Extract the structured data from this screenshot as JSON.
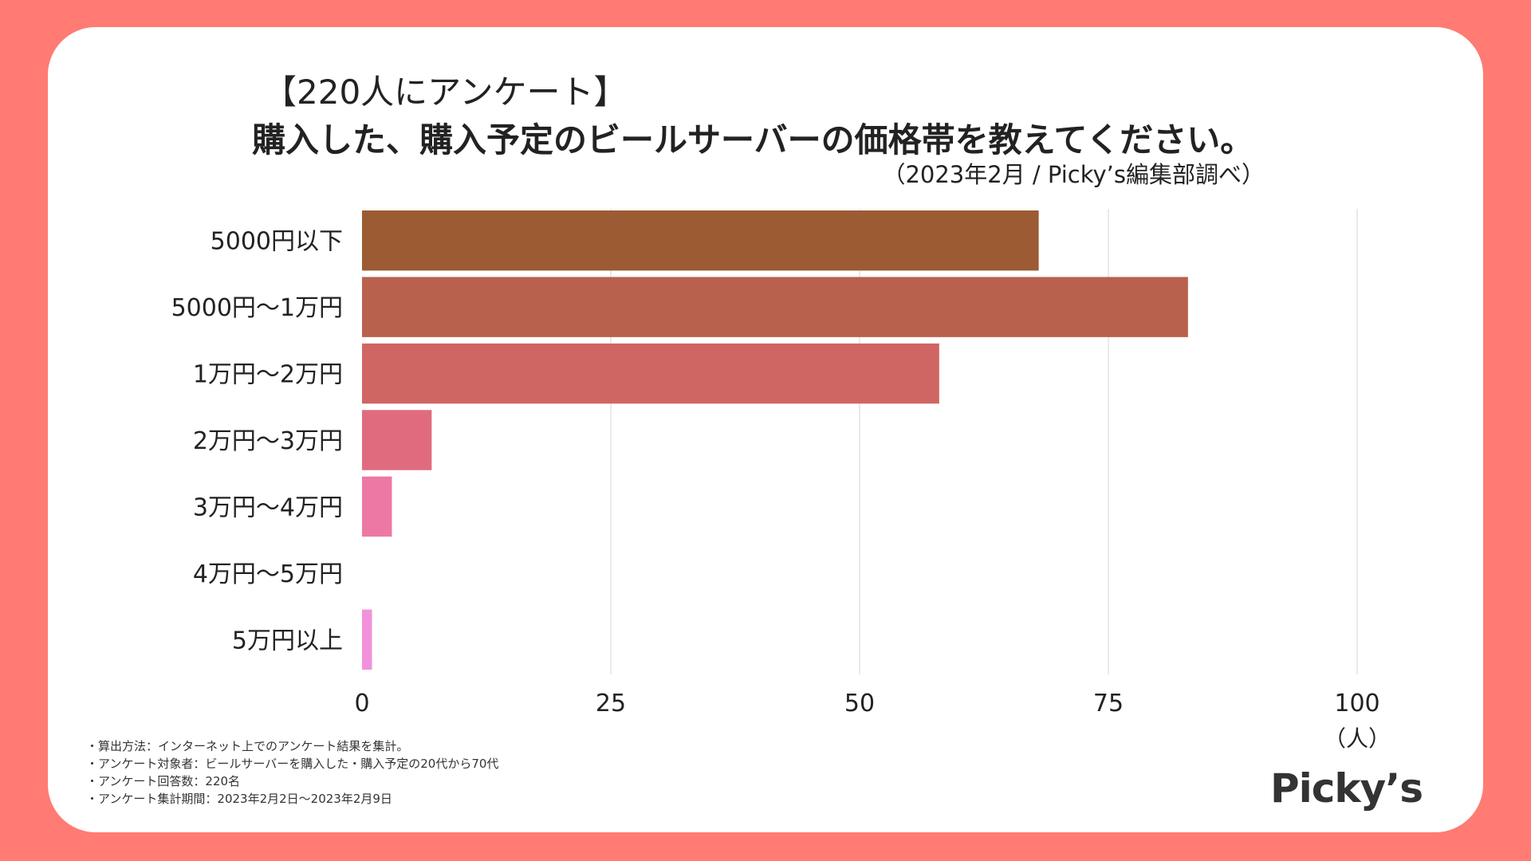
{
  "header": {
    "title_line1": "【220人にアンケート】",
    "title_line2": "購入した、購入予定のビールサーバーの価格帯を教えてください。",
    "source": "（2023年2月 / Picky’s編集部調べ）"
  },
  "chart_data": {
    "type": "bar",
    "orientation": "horizontal",
    "title": "購入した、購入予定のビールサーバーの価格帯を教えてください。",
    "categories": [
      "5000円以下",
      "5000円〜1万円",
      "1万円〜2万円",
      "2万円〜3万円",
      "3万円〜4万円",
      "4万円〜5万円",
      "5万円以上"
    ],
    "values": [
      68,
      83,
      58,
      7,
      3,
      0,
      1
    ],
    "colors": [
      "#9C5B33",
      "#B8614C",
      "#CF6663",
      "#E06B7F",
      "#EC78A3",
      "#F080C0",
      "#F291DB"
    ],
    "xlim": [
      0,
      100
    ],
    "xticks": [
      0,
      25,
      50,
      75,
      100
    ],
    "xlabel": "（人）",
    "ylabel": "",
    "grid": true
  },
  "notes": [
    "・算出方法：インターネット上でのアンケート結果を集計。",
    "・アンケート対象者：ビールサーバーを購入した・購入予定の20代から70代",
    "・アンケート回答数：220名",
    "・アンケート集計期間：2023年2月2日〜2023年2月9日"
  ],
  "logo": "Picky’s",
  "colors": {
    "background": "#FF7B73",
    "card": "#FFFFFF",
    "grid": "#E3E3E3"
  }
}
